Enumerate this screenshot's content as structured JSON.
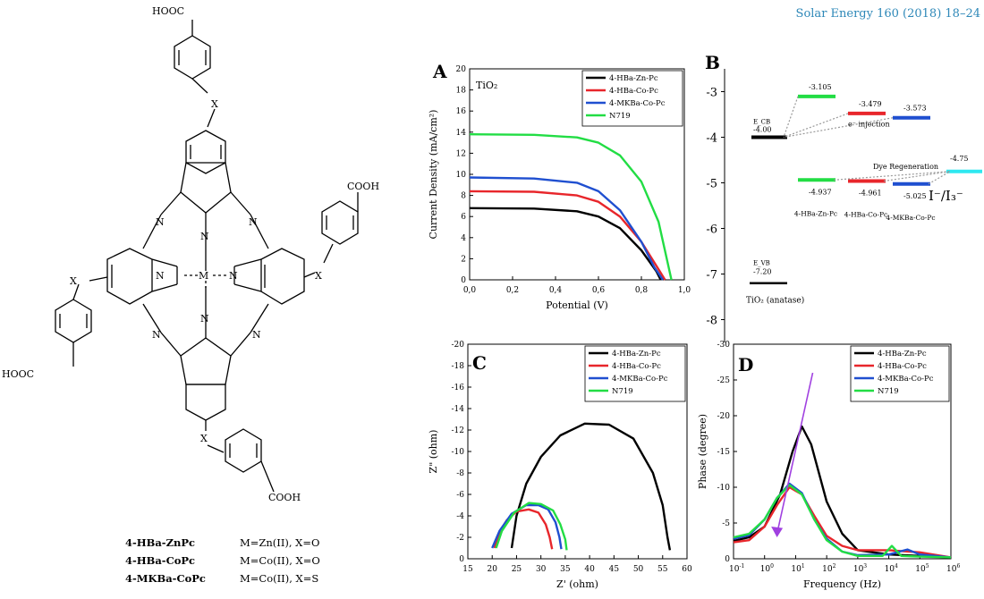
{
  "journal": "Solar Energy 160 (2018) 18–24",
  "structure": {
    "labels": {
      "cooh_top": "HOOC",
      "cooh_right": "COOH",
      "cooh_left": "HOOC",
      "cooh_bottom": "COOH",
      "x": "X",
      "n": "N",
      "m": "M"
    },
    "compounds": [
      {
        "name": "4-HBa-ZnPc",
        "desc": "M=Zn(II), X=O"
      },
      {
        "name": "4-HBa-CoPc",
        "desc": "M=Co(II), X=O"
      },
      {
        "name": "4-MKBa-CoPc",
        "desc": "M=Co(II), X=S"
      }
    ]
  },
  "colors": {
    "zn": "#000000",
    "co": "#e8262b",
    "mk": "#1f4fd0",
    "n719": "#22dd44",
    "cyan": "#2ee8f0",
    "arrow": "#a040e0"
  },
  "chart_data": [
    {
      "panel": "A",
      "type": "line",
      "xlabel": "Potential (V)",
      "ylabel": "Current Density (mA/cm²)",
      "annotation": "TiO₂",
      "xlim": [
        0,
        1.0
      ],
      "ylim": [
        0,
        20
      ],
      "xticks": [
        "0,0",
        "0,2",
        "0,4",
        "0,6",
        "0,8",
        "1,0"
      ],
      "yticks": [
        "0",
        "2",
        "4",
        "6",
        "8",
        "10",
        "12",
        "14",
        "16",
        "18",
        "20"
      ],
      "series": [
        {
          "name": "4-HBa-Zn-Pc",
          "color": "#000000",
          "x": [
            0,
            0.3,
            0.5,
            0.6,
            0.7,
            0.8,
            0.87,
            0.89
          ],
          "y": [
            6.8,
            6.75,
            6.5,
            6.0,
            4.9,
            2.8,
            0.8,
            0
          ]
        },
        {
          "name": "4-HBa-Co-Pc",
          "color": "#e8262b",
          "x": [
            0,
            0.3,
            0.5,
            0.6,
            0.7,
            0.8,
            0.88,
            0.91
          ],
          "y": [
            8.4,
            8.35,
            8.0,
            7.4,
            6.0,
            3.6,
            1.0,
            0
          ]
        },
        {
          "name": "4-MKBa-Co-Pc",
          "color": "#1f4fd0",
          "x": [
            0,
            0.3,
            0.5,
            0.6,
            0.7,
            0.8,
            0.86,
            0.9
          ],
          "y": [
            9.7,
            9.6,
            9.2,
            8.4,
            6.6,
            3.6,
            1.2,
            0
          ]
        },
        {
          "name": "N719",
          "color": "#22dd44",
          "x": [
            0,
            0.3,
            0.5,
            0.6,
            0.7,
            0.8,
            0.88,
            0.94
          ],
          "y": [
            13.8,
            13.75,
            13.5,
            13.0,
            11.8,
            9.3,
            5.5,
            0
          ]
        }
      ]
    },
    {
      "panel": "B",
      "type": "diagram",
      "yticks": [
        "-3",
        "-4",
        "-5",
        "-6",
        "-7",
        "-8"
      ],
      "ylim": [
        -8.5,
        -2.5
      ],
      "tio2": {
        "ecb_label": "E_CB",
        "ecb": "-4.00",
        "evb_label": "E_VB",
        "evb": "-7.20",
        "name": "TiO₂ (anatase)"
      },
      "levels": [
        {
          "name": "4-HBa-Zn-Pc",
          "lumo": "-3.105",
          "homo": "-4.937",
          "color": "#22dd44"
        },
        {
          "name": "4-HBa-Co-Pc",
          "lumo": "-3.479",
          "homo": "-4.961",
          "color": "#e8262b"
        },
        {
          "name": "4-MKBa-Co-Pc",
          "lumo": "-3.573",
          "homo": "-5.025",
          "color": "#1f4fd0"
        }
      ],
      "injection": "e⁻ injection",
      "regeneration": "Dye Regeneration",
      "redox": {
        "value": "-4.75",
        "label": "I⁻/I₃⁻",
        "color": "#2ee8f0"
      }
    },
    {
      "panel": "C",
      "type": "line",
      "xlabel": "Z' (ohm)",
      "ylabel": "Z\" (ohm)",
      "xlim": [
        15,
        60
      ],
      "ylim": [
        0,
        -20
      ],
      "xticks": [
        "15",
        "20",
        "25",
        "30",
        "35",
        "40",
        "45",
        "50",
        "55",
        "60"
      ],
      "yticks": [
        "0",
        "-2",
        "-4",
        "-6",
        "-8",
        "-10",
        "-12",
        "-14",
        "-16",
        "-18",
        "-20"
      ],
      "series": [
        {
          "name": "4-HBa-Zn-Pc",
          "color": "#000000",
          "x": [
            24,
            25,
            27,
            30,
            34,
            39,
            44,
            49,
            53,
            55,
            56,
            56.5
          ],
          "y": [
            -1,
            -4,
            -7,
            -9.5,
            -11.5,
            -12.6,
            -12.5,
            -11.2,
            -8,
            -5,
            -2,
            -0.8
          ]
        },
        {
          "name": "4-HBa-Co-Pc",
          "color": "#e8262b",
          "x": [
            20.5,
            21.5,
            23,
            25,
            27.5,
            29.5,
            31,
            31.8,
            32.3
          ],
          "y": [
            -1,
            -2.5,
            -3.6,
            -4.4,
            -4.6,
            -4.3,
            -3.2,
            -2,
            -0.9
          ]
        },
        {
          "name": "4-MKBa-Co-Pc",
          "color": "#1f4fd0",
          "x": [
            20,
            21.5,
            24,
            27,
            29.5,
            31.5,
            33,
            33.8,
            34.2
          ],
          "y": [
            -1,
            -2.6,
            -4.2,
            -5,
            -5,
            -4.6,
            -3.4,
            -2,
            -0.9
          ]
        },
        {
          "name": "N719",
          "color": "#22dd44",
          "x": [
            20.8,
            22,
            24.5,
            27.5,
            30,
            32.5,
            34,
            35,
            35.3
          ],
          "y": [
            -1,
            -2.6,
            -4.3,
            -5.2,
            -5.1,
            -4.5,
            -3.2,
            -1.8,
            -0.8
          ]
        }
      ]
    },
    {
      "panel": "D",
      "type": "line",
      "xlabel": "Frequency (Hz)",
      "ylabel": "Phase (degree)",
      "xscale": "log",
      "xlim": [
        -1,
        6
      ],
      "ylim": [
        0,
        -30
      ],
      "xticks": [
        "10-1",
        "100",
        "101",
        "102",
        "103",
        "104",
        "105",
        "106"
      ],
      "yticks": [
        "0",
        "-5",
        "-10",
        "-15",
        "-20",
        "-25",
        "-30"
      ],
      "series": [
        {
          "name": "4-HBa-Zn-Pc",
          "color": "#000000",
          "x": [
            -1,
            -0.5,
            0,
            0.5,
            0.9,
            1.2,
            1.5,
            2,
            2.5,
            3,
            4,
            5,
            6
          ],
          "y": [
            -2.5,
            -3,
            -4.5,
            -9,
            -15,
            -18.5,
            -16,
            -8,
            -3.5,
            -1.2,
            -0.6,
            -0.4,
            -0.2
          ]
        },
        {
          "name": "4-HBa-Co-Pc",
          "color": "#e8262b",
          "x": [
            -1,
            -0.5,
            0,
            0.4,
            0.8,
            1.2,
            1.6,
            2,
            2.5,
            3,
            4,
            5,
            6
          ],
          "y": [
            -2.3,
            -2.6,
            -4.5,
            -7.5,
            -10,
            -9,
            -6,
            -3.2,
            -1.8,
            -1.2,
            -1.2,
            -0.9,
            -0.2
          ]
        },
        {
          "name": "4-MKBa-Co-Pc",
          "color": "#1f4fd0",
          "x": [
            -1,
            -0.5,
            0,
            0.4,
            0.8,
            1.2,
            1.6,
            2,
            2.5,
            3,
            4,
            4.6,
            5,
            6
          ],
          "y": [
            -2.8,
            -3.3,
            -5.5,
            -8.5,
            -10.5,
            -9.2,
            -5.5,
            -2.8,
            -1,
            -0.5,
            -0.6,
            -1.3,
            -0.6,
            -0.2
          ]
        },
        {
          "name": "N719",
          "color": "#22dd44",
          "x": [
            -1,
            -0.5,
            0,
            0.4,
            0.8,
            1.2,
            1.6,
            2,
            2.5,
            3,
            3.8,
            4.1,
            4.4,
            5,
            6
          ],
          "y": [
            -3,
            -3.5,
            -5.5,
            -8.5,
            -10.3,
            -9,
            -5.5,
            -2.6,
            -1,
            -0.4,
            -0.4,
            -1.8,
            -0.4,
            -0.3,
            -0.2
          ]
        }
      ]
    }
  ]
}
